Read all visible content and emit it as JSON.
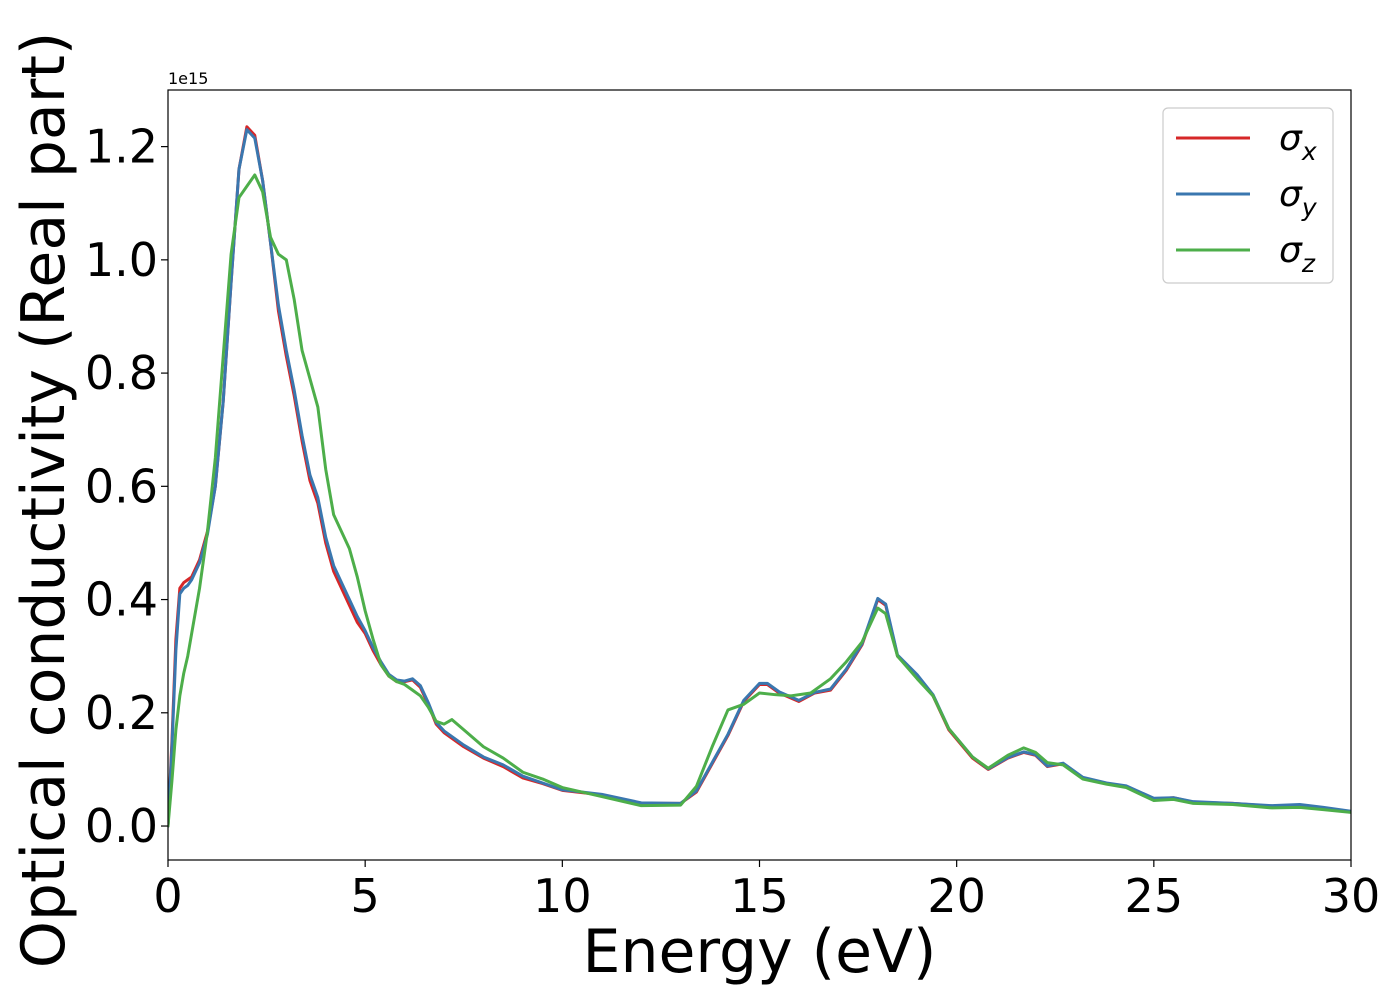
{
  "chart_data": {
    "type": "line",
    "title": "",
    "xlabel": "Energy (eV)",
    "ylabel": "Optical conductivity (Real part)",
    "y_offset_label": "1e15",
    "y_scale_factor": 1000000000000000.0,
    "xlim": [
      0,
      30
    ],
    "ylim": [
      -0.06,
      1.3
    ],
    "xticks": [
      0,
      5,
      10,
      15,
      20,
      25,
      30
    ],
    "xtick_labels": [
      "0",
      "5",
      "10",
      "15",
      "20",
      "25",
      "30"
    ],
    "yticks": [
      0.0,
      0.2,
      0.4,
      0.6,
      0.8,
      1.0,
      1.2
    ],
    "ytick_labels": [
      "0.0",
      "0.2",
      "0.4",
      "0.6",
      "0.8",
      "1.0",
      "1.2"
    ],
    "grid": false,
    "legend_position": "upper-right",
    "series": [
      {
        "name": "σx",
        "symbol": "σ",
        "subscript": "x",
        "color": "#d62728",
        "points": [
          [
            0,
            0
          ],
          [
            0.1,
            0.15
          ],
          [
            0.2,
            0.33
          ],
          [
            0.3,
            0.42
          ],
          [
            0.4,
            0.43
          ],
          [
            0.5,
            0.435
          ],
          [
            0.6,
            0.44
          ],
          [
            0.8,
            0.47
          ],
          [
            1.0,
            0.52
          ],
          [
            1.2,
            0.6
          ],
          [
            1.4,
            0.75
          ],
          [
            1.6,
            0.96
          ],
          [
            1.8,
            1.16
          ],
          [
            2.0,
            1.235
          ],
          [
            2.2,
            1.22
          ],
          [
            2.4,
            1.14
          ],
          [
            2.6,
            1.03
          ],
          [
            2.8,
            0.91
          ],
          [
            3.0,
            0.83
          ],
          [
            3.2,
            0.76
          ],
          [
            3.4,
            0.68
          ],
          [
            3.6,
            0.61
          ],
          [
            3.8,
            0.57
          ],
          [
            4.0,
            0.5
          ],
          [
            4.2,
            0.45
          ],
          [
            4.4,
            0.42
          ],
          [
            4.6,
            0.39
          ],
          [
            4.8,
            0.36
          ],
          [
            5.0,
            0.34
          ],
          [
            5.2,
            0.31
          ],
          [
            5.4,
            0.285
          ],
          [
            5.6,
            0.265
          ],
          [
            5.8,
            0.255
          ],
          [
            6.0,
            0.255
          ],
          [
            6.2,
            0.258
          ],
          [
            6.4,
            0.245
          ],
          [
            6.6,
            0.215
          ],
          [
            6.8,
            0.18
          ],
          [
            7.0,
            0.165
          ],
          [
            7.5,
            0.14
          ],
          [
            8.0,
            0.12
          ],
          [
            8.5,
            0.105
          ],
          [
            9.0,
            0.085
          ],
          [
            9.5,
            0.075
          ],
          [
            10.0,
            0.063
          ],
          [
            11.0,
            0.055
          ],
          [
            12.0,
            0.04
          ],
          [
            13.0,
            0.04
          ],
          [
            13.4,
            0.06
          ],
          [
            13.8,
            0.11
          ],
          [
            14.2,
            0.16
          ],
          [
            14.6,
            0.22
          ],
          [
            15.0,
            0.25
          ],
          [
            15.2,
            0.25
          ],
          [
            15.5,
            0.235
          ],
          [
            16.0,
            0.22
          ],
          [
            16.4,
            0.235
          ],
          [
            16.8,
            0.24
          ],
          [
            17.2,
            0.275
          ],
          [
            17.6,
            0.32
          ],
          [
            18.0,
            0.4
          ],
          [
            18.2,
            0.39
          ],
          [
            18.5,
            0.3
          ],
          [
            19.0,
            0.265
          ],
          [
            19.4,
            0.23
          ],
          [
            19.8,
            0.17
          ],
          [
            20.4,
            0.12
          ],
          [
            20.8,
            0.1
          ],
          [
            21.3,
            0.12
          ],
          [
            21.7,
            0.13
          ],
          [
            22.0,
            0.125
          ],
          [
            22.3,
            0.105
          ],
          [
            22.7,
            0.11
          ],
          [
            23.2,
            0.085
          ],
          [
            23.8,
            0.075
          ],
          [
            24.3,
            0.07
          ],
          [
            25.0,
            0.048
          ],
          [
            25.5,
            0.05
          ],
          [
            26.0,
            0.042
          ],
          [
            27.0,
            0.04
          ],
          [
            28.0,
            0.035
          ],
          [
            28.7,
            0.037
          ],
          [
            29.3,
            0.032
          ],
          [
            30.0,
            0.025
          ]
        ]
      },
      {
        "name": "σy",
        "symbol": "σ",
        "subscript": "y",
        "color": "#3a77af",
        "points": [
          [
            0,
            0
          ],
          [
            0.1,
            0.14
          ],
          [
            0.2,
            0.31
          ],
          [
            0.3,
            0.41
          ],
          [
            0.4,
            0.42
          ],
          [
            0.5,
            0.425
          ],
          [
            0.6,
            0.435
          ],
          [
            0.8,
            0.465
          ],
          [
            1.0,
            0.515
          ],
          [
            1.2,
            0.6
          ],
          [
            1.4,
            0.75
          ],
          [
            1.6,
            0.96
          ],
          [
            1.8,
            1.16
          ],
          [
            2.0,
            1.23
          ],
          [
            2.2,
            1.215
          ],
          [
            2.4,
            1.14
          ],
          [
            2.6,
            1.03
          ],
          [
            2.8,
            0.92
          ],
          [
            3.0,
            0.84
          ],
          [
            3.2,
            0.77
          ],
          [
            3.4,
            0.69
          ],
          [
            3.6,
            0.62
          ],
          [
            3.8,
            0.58
          ],
          [
            4.0,
            0.51
          ],
          [
            4.2,
            0.46
          ],
          [
            4.4,
            0.43
          ],
          [
            4.6,
            0.4
          ],
          [
            4.8,
            0.37
          ],
          [
            5.0,
            0.345
          ],
          [
            5.2,
            0.315
          ],
          [
            5.4,
            0.29
          ],
          [
            5.6,
            0.268
          ],
          [
            5.8,
            0.258
          ],
          [
            6.0,
            0.256
          ],
          [
            6.2,
            0.26
          ],
          [
            6.4,
            0.248
          ],
          [
            6.6,
            0.218
          ],
          [
            6.8,
            0.183
          ],
          [
            7.0,
            0.168
          ],
          [
            7.5,
            0.143
          ],
          [
            8.0,
            0.122
          ],
          [
            8.5,
            0.108
          ],
          [
            9.0,
            0.088
          ],
          [
            9.5,
            0.076
          ],
          [
            10.0,
            0.064
          ],
          [
            11.0,
            0.056
          ],
          [
            12.0,
            0.041
          ],
          [
            13.0,
            0.04
          ],
          [
            13.4,
            0.062
          ],
          [
            13.8,
            0.112
          ],
          [
            14.2,
            0.162
          ],
          [
            14.6,
            0.222
          ],
          [
            15.0,
            0.252
          ],
          [
            15.2,
            0.252
          ],
          [
            15.5,
            0.237
          ],
          [
            16.0,
            0.222
          ],
          [
            16.4,
            0.236
          ],
          [
            16.8,
            0.242
          ],
          [
            17.2,
            0.277
          ],
          [
            17.6,
            0.322
          ],
          [
            18.0,
            0.402
          ],
          [
            18.2,
            0.392
          ],
          [
            18.5,
            0.302
          ],
          [
            19.0,
            0.267
          ],
          [
            19.4,
            0.232
          ],
          [
            19.8,
            0.172
          ],
          [
            20.4,
            0.122
          ],
          [
            20.8,
            0.101
          ],
          [
            21.3,
            0.121
          ],
          [
            21.7,
            0.131
          ],
          [
            22.0,
            0.126
          ],
          [
            22.3,
            0.106
          ],
          [
            22.7,
            0.111
          ],
          [
            23.2,
            0.086
          ],
          [
            23.8,
            0.076
          ],
          [
            24.3,
            0.071
          ],
          [
            25.0,
            0.049
          ],
          [
            25.5,
            0.05
          ],
          [
            26.0,
            0.043
          ],
          [
            27.0,
            0.04
          ],
          [
            28.0,
            0.036
          ],
          [
            28.7,
            0.038
          ],
          [
            29.3,
            0.033
          ],
          [
            30.0,
            0.026
          ]
        ]
      },
      {
        "name": "σz",
        "symbol": "σ",
        "subscript": "z",
        "color": "#4dae4a",
        "points": [
          [
            0,
            0
          ],
          [
            0.1,
            0.08
          ],
          [
            0.2,
            0.17
          ],
          [
            0.3,
            0.23
          ],
          [
            0.4,
            0.27
          ],
          [
            0.5,
            0.3
          ],
          [
            0.6,
            0.34
          ],
          [
            0.8,
            0.42
          ],
          [
            1.0,
            0.52
          ],
          [
            1.2,
            0.65
          ],
          [
            1.4,
            0.83
          ],
          [
            1.6,
            1.01
          ],
          [
            1.8,
            1.11
          ],
          [
            2.0,
            1.13
          ],
          [
            2.2,
            1.15
          ],
          [
            2.4,
            1.12
          ],
          [
            2.6,
            1.04
          ],
          [
            2.8,
            1.01
          ],
          [
            3.0,
            1.0
          ],
          [
            3.2,
            0.93
          ],
          [
            3.4,
            0.84
          ],
          [
            3.6,
            0.79
          ],
          [
            3.8,
            0.74
          ],
          [
            4.0,
            0.63
          ],
          [
            4.2,
            0.55
          ],
          [
            4.4,
            0.52
          ],
          [
            4.6,
            0.49
          ],
          [
            4.8,
            0.44
          ],
          [
            5.0,
            0.38
          ],
          [
            5.2,
            0.33
          ],
          [
            5.4,
            0.285
          ],
          [
            5.6,
            0.265
          ],
          [
            5.8,
            0.255
          ],
          [
            6.0,
            0.25
          ],
          [
            6.2,
            0.24
          ],
          [
            6.4,
            0.23
          ],
          [
            6.6,
            0.21
          ],
          [
            6.8,
            0.185
          ],
          [
            7.0,
            0.18
          ],
          [
            7.2,
            0.188
          ],
          [
            7.5,
            0.17
          ],
          [
            8.0,
            0.14
          ],
          [
            8.5,
            0.12
          ],
          [
            9.0,
            0.095
          ],
          [
            9.5,
            0.083
          ],
          [
            10.0,
            0.068
          ],
          [
            11.0,
            0.052
          ],
          [
            12.0,
            0.036
          ],
          [
            13.0,
            0.037
          ],
          [
            13.4,
            0.07
          ],
          [
            13.8,
            0.14
          ],
          [
            14.2,
            0.205
          ],
          [
            14.6,
            0.215
          ],
          [
            15.0,
            0.235
          ],
          [
            15.4,
            0.232
          ],
          [
            15.8,
            0.23
          ],
          [
            16.3,
            0.235
          ],
          [
            16.8,
            0.26
          ],
          [
            17.2,
            0.29
          ],
          [
            17.6,
            0.325
          ],
          [
            18.0,
            0.385
          ],
          [
            18.2,
            0.375
          ],
          [
            18.5,
            0.3
          ],
          [
            19.0,
            0.26
          ],
          [
            19.4,
            0.23
          ],
          [
            19.8,
            0.172
          ],
          [
            20.4,
            0.122
          ],
          [
            20.8,
            0.102
          ],
          [
            21.3,
            0.125
          ],
          [
            21.7,
            0.138
          ],
          [
            22.0,
            0.13
          ],
          [
            22.3,
            0.112
          ],
          [
            22.7,
            0.108
          ],
          [
            23.2,
            0.083
          ],
          [
            23.8,
            0.074
          ],
          [
            24.3,
            0.068
          ],
          [
            25.0,
            0.045
          ],
          [
            25.5,
            0.047
          ],
          [
            26.0,
            0.04
          ],
          [
            27.0,
            0.038
          ],
          [
            28.0,
            0.032
          ],
          [
            28.7,
            0.033
          ],
          [
            29.3,
            0.029
          ],
          [
            30.0,
            0.024
          ]
        ]
      }
    ]
  }
}
